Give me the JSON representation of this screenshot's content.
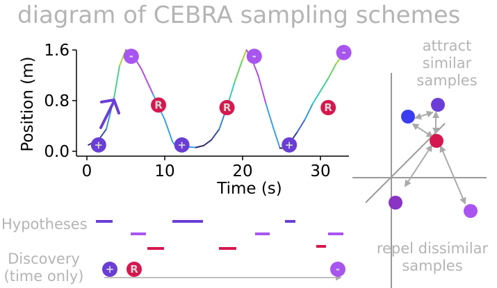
{
  "title": "diagram of CEBRA sampling schemes",
  "chart_data": {
    "type": "line",
    "xlabel": "Time (s)",
    "ylabel": "Position (m)",
    "xlim": [
      -1,
      33
    ],
    "ylim": [
      0,
      1.6
    ],
    "x_ticks": [
      "0",
      "10",
      "20",
      "30"
    ],
    "y_ticks": [
      "0.0",
      "0.8",
      "1.6"
    ],
    "series": [
      {
        "x": [
          0.2,
          1.5,
          2.5,
          3.5,
          4.2,
          5.0,
          6.0,
          7.0,
          8.5,
          10.0,
          11.0,
          11.6,
          12.0,
          13.0,
          14.0,
          15.0,
          16.0,
          17.0,
          18.0,
          19.0,
          20.0,
          20.5,
          21.2,
          22.0,
          23.0,
          24.0,
          24.8,
          25.2,
          26.0,
          27.0,
          28.0,
          29.0,
          30.0,
          31.0,
          32.0,
          33.0
        ],
        "y": [
          0.1,
          0.18,
          0.35,
          0.85,
          1.35,
          1.6,
          1.5,
          1.3,
          0.9,
          0.5,
          0.15,
          0.05,
          0.05,
          0.07,
          0.06,
          0.09,
          0.18,
          0.35,
          0.7,
          1.1,
          1.45,
          1.6,
          1.45,
          1.2,
          0.75,
          0.35,
          0.05,
          0.05,
          0.12,
          0.3,
          0.5,
          0.75,
          0.95,
          1.15,
          1.38,
          1.55
        ]
      }
    ]
  },
  "plot_markers": [
    {
      "t": 1.5,
      "y": 0.1,
      "label": "+",
      "kind": "positive"
    },
    {
      "t": 5.7,
      "y": 1.5,
      "label": "-",
      "kind": "negative"
    },
    {
      "t": 9.2,
      "y": 0.73,
      "label": "R",
      "kind": "reference"
    },
    {
      "t": 12.2,
      "y": 0.1,
      "label": "+",
      "kind": "positive"
    },
    {
      "t": 18.0,
      "y": 0.69,
      "label": "R",
      "kind": "reference"
    },
    {
      "t": 21.5,
      "y": 1.5,
      "label": "-",
      "kind": "negative"
    },
    {
      "t": 26.0,
      "y": 0.1,
      "label": "+",
      "kind": "positive"
    },
    {
      "t": 31.0,
      "y": 0.69,
      "label": "R",
      "kind": "reference"
    },
    {
      "t": 33.0,
      "y": 1.56,
      "label": "-",
      "kind": "negative"
    }
  ],
  "hypotheses_label": "Hypotheses",
  "discovery_label_1": "Discovery",
  "discovery_label_2": "(time only)",
  "discovery_markers": [
    {
      "label": "+",
      "kind": "positive"
    },
    {
      "label": "R",
      "kind": "reference"
    },
    {
      "label": "-",
      "kind": "negative"
    }
  ],
  "attract_text_1": "attract",
  "attract_text_2": "similar",
  "attract_text_3": "samples",
  "repel_text_1": "repel dissimilar",
  "repel_text_2": "samples",
  "colors": {
    "positive": "#6a3ed6",
    "negative": "#a855f0",
    "reference": "#d6174f",
    "blue_point": "#3a3cf0",
    "dark_purple_point": "#8a33c4",
    "gray_text": "#b4b4b4",
    "axis_gray": "#999999",
    "arrow_gray": "#aaaaaa"
  }
}
